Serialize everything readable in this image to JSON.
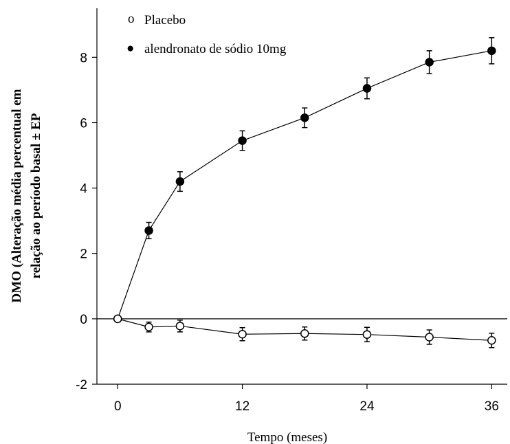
{
  "chart_data": {
    "type": "line",
    "xlabel": "Tempo (meses)",
    "ylabel": [
      "DMO (Alteração média percentual em",
      "relação ao período basal ± EP"
    ],
    "xticks": [
      0,
      12,
      24,
      36
    ],
    "yticks": [
      -2,
      0,
      2,
      4,
      6,
      8
    ],
    "xlim": [
      -2,
      37.5
    ],
    "ylim": [
      -2,
      9.5
    ],
    "zero_line": true,
    "legend": {
      "position": "top-left"
    },
    "series": [
      {
        "name": "alendronato de sódio 10mg",
        "marker": "filled-circle",
        "legend_marker": "●",
        "x": [
          0,
          3,
          6,
          12,
          18,
          24,
          30,
          36
        ],
        "y": [
          0,
          2.7,
          4.2,
          5.45,
          6.15,
          7.05,
          7.85,
          8.2
        ],
        "err": [
          0.05,
          0.25,
          0.3,
          0.3,
          0.3,
          0.32,
          0.35,
          0.4
        ]
      },
      {
        "name": "Placebo",
        "marker": "open-circle",
        "legend_marker": "o",
        "x": [
          0,
          3,
          6,
          12,
          18,
          24,
          30,
          36
        ],
        "y": [
          0,
          -0.25,
          -0.22,
          -0.47,
          -0.45,
          -0.48,
          -0.56,
          -0.66
        ],
        "err": [
          0.05,
          0.15,
          0.18,
          0.2,
          0.2,
          0.22,
          0.22,
          0.22
        ]
      }
    ]
  }
}
